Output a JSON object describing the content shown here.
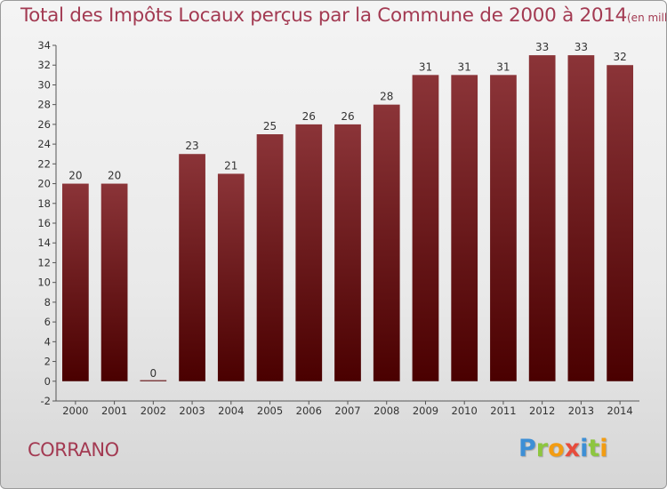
{
  "chart_data": {
    "type": "bar",
    "title": "Total des Impôts Locaux perçus par la Commune de 2000 à 2014",
    "unit": "(en milliers d'€)",
    "categories": [
      "2000",
      "2001",
      "2002",
      "2003",
      "2004",
      "2005",
      "2006",
      "2007",
      "2008",
      "2009",
      "2010",
      "2011",
      "2012",
      "2013",
      "2014"
    ],
    "values": [
      20,
      20,
      0,
      23,
      21,
      25,
      26,
      26,
      28,
      31,
      31,
      31,
      33,
      33,
      32
    ],
    "value_labels": [
      "20",
      "20",
      "0",
      "23",
      "21",
      "25",
      "26",
      "26",
      "28",
      "31",
      "31",
      "31",
      "33",
      "33",
      "32"
    ],
    "ylim": [
      -2,
      34
    ],
    "yticks": [
      -2,
      0,
      2,
      4,
      6,
      8,
      10,
      12,
      14,
      16,
      18,
      20,
      22,
      24,
      26,
      28,
      30,
      32,
      34
    ],
    "xlabel": "",
    "ylabel": "",
    "grid": false,
    "bar_color_top": "#8b3438",
    "bar_color_bottom": "#4a0000"
  },
  "footer": {
    "commune": "CORRANO",
    "logo": {
      "letters": [
        "P",
        "r",
        "o",
        "x",
        "i",
        "t",
        "i"
      ]
    }
  }
}
